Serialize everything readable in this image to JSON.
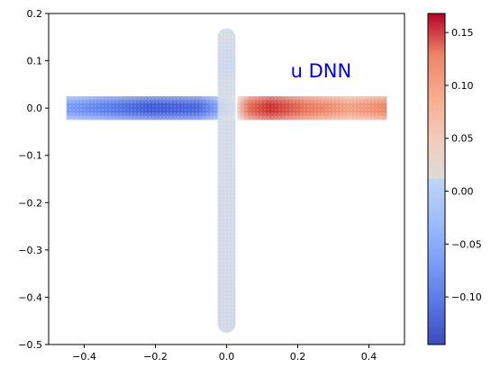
{
  "chart_data": {
    "type": "heatmap",
    "title": "",
    "annotation": "u DNN",
    "annotation_color": "#0000ff",
    "xlabel": "",
    "ylabel": "",
    "xlim": [
      -0.5,
      0.5
    ],
    "ylim": [
      -0.5,
      0.2
    ],
    "x_ticks": [
      "−0.4",
      "−0.2",
      "0.0",
      "0.2",
      "0.4"
    ],
    "x_tick_values": [
      -0.4,
      -0.2,
      0.0,
      0.2,
      0.4
    ],
    "y_ticks": [
      "−0.5",
      "−0.4",
      "−0.3",
      "−0.2",
      "−0.1",
      "0.0",
      "0.1",
      "0.2"
    ],
    "y_tick_values": [
      -0.5,
      -0.4,
      -0.3,
      -0.2,
      -0.1,
      0.0,
      0.1,
      0.2
    ],
    "grid": false,
    "colormap": "coolwarm",
    "colorbar": {
      "range": [
        -0.145,
        0.168
      ],
      "ticks": [
        "−0.10",
        "−0.05",
        "0.00",
        "0.05",
        "0.10",
        "0.15"
      ],
      "tick_values": [
        -0.1,
        -0.05,
        0.0,
        0.05,
        0.1,
        0.15
      ]
    },
    "domain": {
      "horizontal_channel": {
        "x": [
          -0.45,
          0.45
        ],
        "y": [
          -0.025,
          0.025
        ]
      },
      "vertical_channel": {
        "x": [
          -0.025,
          0.025
        ],
        "y": [
          -0.475,
          0.15
        ]
      }
    },
    "field_features": [
      {
        "region": "left arm",
        "x": -0.15,
        "y": 0.0,
        "value": -0.145
      },
      {
        "region": "right arm",
        "x": 0.12,
        "y": 0.0,
        "value": 0.168
      },
      {
        "region": "vertical stem",
        "x": 0.0,
        "y": -0.2,
        "value": 0.0
      }
    ]
  }
}
